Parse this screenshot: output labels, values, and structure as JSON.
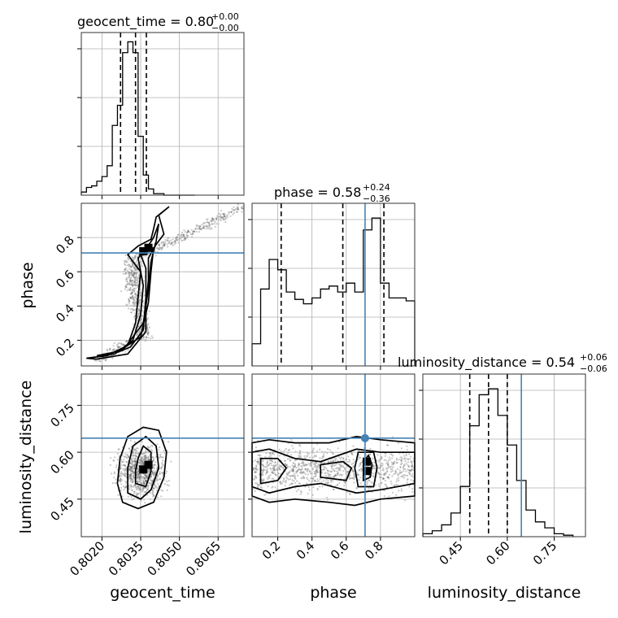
{
  "colors": {
    "truth": "#4682b4",
    "line": "#000000",
    "grid": "#b0b0b0",
    "points": "#606060"
  },
  "chart_data": [
    {
      "type": "histogram",
      "panel": "geocent_time-1d",
      "title_param": "geocent_time = 0.80",
      "title_sup": "+0.00",
      "title_sub": "−0.00",
      "x": [
        0.8012,
        0.8014,
        0.8016,
        0.8018,
        0.802,
        0.8022,
        0.8024,
        0.8026,
        0.8028,
        0.803,
        0.8032,
        0.8034,
        0.8036,
        0.8038,
        0.804,
        0.8042,
        0.8044,
        0.8046,
        0.8048,
        0.805,
        0.8052,
        0.8054
      ],
      "values": [
        0.02,
        0.05,
        0.06,
        0.09,
        0.12,
        0.19,
        0.45,
        0.58,
        0.92,
        0.99,
        0.92,
        0.38,
        0.13,
        0.04,
        0.01,
        0.01,
        0.0,
        0.0,
        0.0,
        0.0,
        0.0,
        0.0
      ],
      "quantiles": [
        0.80272,
        0.8033,
        0.80372
      ],
      "xlim": [
        0.8012,
        0.8075
      ],
      "ylim": [
        0,
        1.05
      ]
    },
    {
      "type": "histogram",
      "panel": "phase-1d",
      "title_param": "phase = 0.58",
      "title_sup": "+0.24",
      "title_sub": "−0.36",
      "x": [
        0.05,
        0.1,
        0.15,
        0.2,
        0.25,
        0.3,
        0.35,
        0.4,
        0.45,
        0.5,
        0.55,
        0.6,
        0.65,
        0.7,
        0.75,
        0.8,
        0.85,
        0.9,
        0.95
      ],
      "values": [
        0.15,
        0.52,
        0.72,
        0.65,
        0.5,
        0.45,
        0.42,
        0.46,
        0.52,
        0.54,
        0.5,
        0.56,
        0.5,
        0.92,
        1.0,
        0.56,
        0.46,
        0.46,
        0.44
      ],
      "quantiles": [
        0.22,
        0.58,
        0.82
      ],
      "truth": 0.71,
      "xlim": [
        0.05,
        1.0
      ],
      "ylim": [
        0,
        1.1
      ]
    },
    {
      "type": "histogram",
      "panel": "luminosity_distance-1d",
      "title_param": "luminosity_distance = 0.54",
      "title_sup": "+0.06",
      "title_sub": "−0.06",
      "x": [
        0.33,
        0.36,
        0.39,
        0.42,
        0.45,
        0.48,
        0.51,
        0.54,
        0.57,
        0.6,
        0.63,
        0.66,
        0.69,
        0.72,
        0.75,
        0.78
      ],
      "values": [
        0.02,
        0.04,
        0.08,
        0.16,
        0.34,
        0.75,
        0.96,
        1.0,
        0.82,
        0.62,
        0.38,
        0.18,
        0.1,
        0.06,
        0.02,
        0.01
      ],
      "quantiles": [
        0.48,
        0.54,
        0.6
      ],
      "truth": 0.645,
      "xlim": [
        0.33,
        0.85
      ],
      "ylim": [
        0,
        1.1
      ]
    },
    {
      "type": "scatter",
      "panel": "phase-vs-geocent_time",
      "xlim": [
        0.8012,
        0.8075
      ],
      "ylim": [
        0.05,
        1.0
      ],
      "truth_y": 0.71,
      "contours": [
        [
          [
            0.8014,
            0.095
          ],
          [
            0.8022,
            0.11
          ],
          [
            0.803,
            0.17
          ],
          [
            0.8033,
            0.3
          ],
          [
            0.8034,
            0.45
          ],
          [
            0.8035,
            0.6
          ],
          [
            0.803,
            0.7
          ],
          [
            0.8034,
            0.75
          ],
          [
            0.8039,
            0.79
          ],
          [
            0.804,
            0.85
          ],
          [
            0.8041,
            0.92
          ],
          [
            0.8046,
            0.98
          ],
          [
            0.8042,
            0.93
          ],
          [
            0.8044,
            0.82
          ],
          [
            0.8041,
            0.76
          ],
          [
            0.8038,
            0.68
          ],
          [
            0.8038,
            0.55
          ],
          [
            0.8037,
            0.4
          ],
          [
            0.8037,
            0.25
          ],
          [
            0.803,
            0.12
          ],
          [
            0.8018,
            0.09
          ]
        ],
        [
          [
            0.8018,
            0.11
          ],
          [
            0.8025,
            0.12
          ],
          [
            0.8032,
            0.2
          ],
          [
            0.8035,
            0.35
          ],
          [
            0.8036,
            0.52
          ],
          [
            0.8034,
            0.68
          ],
          [
            0.8037,
            0.73
          ],
          [
            0.804,
            0.8
          ],
          [
            0.8042,
            0.88
          ],
          [
            0.8041,
            0.78
          ],
          [
            0.8039,
            0.66
          ],
          [
            0.8038,
            0.5
          ],
          [
            0.8036,
            0.3
          ],
          [
            0.8028,
            0.14
          ]
        ],
        [
          [
            0.8026,
            0.13
          ],
          [
            0.8031,
            0.16
          ],
          [
            0.8036,
            0.26
          ],
          [
            0.8037,
            0.45
          ],
          [
            0.8037,
            0.62
          ],
          [
            0.8035,
            0.7
          ],
          [
            0.804,
            0.74
          ],
          [
            0.8039,
            0.6
          ],
          [
            0.8038,
            0.42
          ],
          [
            0.8035,
            0.22
          ]
        ]
      ],
      "peak_cells": [
        [
          0.8036,
          0.72
        ],
        [
          0.8038,
          0.74
        ]
      ]
    },
    {
      "type": "scatter",
      "panel": "luminosity_distance-vs-geocent_time",
      "xlim": [
        0.8012,
        0.8075
      ],
      "ylim": [
        0.33,
        0.85
      ],
      "truth_y": 0.645,
      "contours": [
        [
          [
            0.8028,
            0.44
          ],
          [
            0.8034,
            0.42
          ],
          [
            0.804,
            0.44
          ],
          [
            0.8044,
            0.52
          ],
          [
            0.8045,
            0.6
          ],
          [
            0.8042,
            0.67
          ],
          [
            0.8036,
            0.68
          ],
          [
            0.803,
            0.65
          ],
          [
            0.8027,
            0.58
          ],
          [
            0.8026,
            0.5
          ]
        ],
        [
          [
            0.803,
            0.47
          ],
          [
            0.8035,
            0.45
          ],
          [
            0.8039,
            0.48
          ],
          [
            0.8042,
            0.55
          ],
          [
            0.8041,
            0.62
          ],
          [
            0.8037,
            0.65
          ],
          [
            0.8032,
            0.62
          ],
          [
            0.803,
            0.55
          ]
        ],
        [
          [
            0.8033,
            0.5
          ],
          [
            0.8037,
            0.49
          ],
          [
            0.8039,
            0.54
          ],
          [
            0.8039,
            0.6
          ],
          [
            0.8036,
            0.62
          ],
          [
            0.8034,
            0.58
          ],
          [
            0.8033,
            0.54
          ]
        ]
      ],
      "peak_cells": [
        [
          0.8036,
          0.545
        ],
        [
          0.8038,
          0.56
        ]
      ]
    },
    {
      "type": "scatter",
      "panel": "luminosity_distance-vs-phase",
      "xlim": [
        0.05,
        1.0
      ],
      "ylim": [
        0.33,
        0.85
      ],
      "truth": [
        0.71,
        0.645
      ],
      "contours": [
        [
          [
            0.05,
            0.46
          ],
          [
            0.15,
            0.44
          ],
          [
            0.3,
            0.45
          ],
          [
            0.5,
            0.44
          ],
          [
            0.65,
            0.43
          ],
          [
            0.8,
            0.45
          ],
          [
            1.0,
            0.46
          ],
          [
            1.0,
            0.63
          ],
          [
            0.8,
            0.64
          ],
          [
            0.66,
            0.65
          ],
          [
            0.5,
            0.63
          ],
          [
            0.3,
            0.63
          ],
          [
            0.15,
            0.64
          ],
          [
            0.05,
            0.63
          ]
        ],
        [
          [
            0.05,
            0.49
          ],
          [
            0.15,
            0.47
          ],
          [
            0.3,
            0.49
          ],
          [
            0.45,
            0.5
          ],
          [
            0.66,
            0.47
          ],
          [
            0.8,
            0.48
          ],
          [
            1.0,
            0.5
          ],
          [
            1.0,
            0.6
          ],
          [
            0.8,
            0.6
          ],
          [
            0.66,
            0.61
          ],
          [
            0.45,
            0.57
          ],
          [
            0.3,
            0.58
          ],
          [
            0.15,
            0.61
          ],
          [
            0.05,
            0.6
          ]
        ],
        [
          [
            0.1,
            0.5
          ],
          [
            0.2,
            0.51
          ],
          [
            0.25,
            0.55
          ],
          [
            0.2,
            0.58
          ],
          [
            0.1,
            0.58
          ]
        ],
        [
          [
            0.45,
            0.52
          ],
          [
            0.6,
            0.51
          ],
          [
            0.63,
            0.55
          ],
          [
            0.58,
            0.57
          ],
          [
            0.45,
            0.56
          ]
        ],
        [
          [
            0.67,
            0.49
          ],
          [
            0.76,
            0.49
          ],
          [
            0.78,
            0.55
          ],
          [
            0.76,
            0.6
          ],
          [
            0.67,
            0.6
          ],
          [
            0.65,
            0.55
          ]
        ],
        [
          [
            0.7,
            0.51
          ],
          [
            0.74,
            0.52
          ],
          [
            0.75,
            0.56
          ],
          [
            0.73,
            0.59
          ],
          [
            0.7,
            0.57
          ]
        ]
      ],
      "peak_cells": [
        [
          0.72,
          0.54
        ],
        [
          0.72,
          0.57
        ]
      ]
    }
  ],
  "axes": {
    "geocent_time": {
      "label": "geocent_time",
      "ticks": [
        0.802,
        0.8035,
        0.805,
        0.8065
      ],
      "tick_labels": [
        "0.8020",
        "0.8035",
        "0.8050",
        "0.8065"
      ]
    },
    "phase": {
      "label": "phase",
      "ticks": [
        0.2,
        0.4,
        0.6,
        0.8
      ],
      "tick_labels": [
        "0.2",
        "0.4",
        "0.6",
        "0.8"
      ]
    },
    "luminosity_distance": {
      "label": "luminosity_distance",
      "ticks": [
        0.45,
        0.6,
        0.75
      ],
      "tick_labels": [
        "0.45",
        "0.60",
        "0.75"
      ]
    }
  }
}
